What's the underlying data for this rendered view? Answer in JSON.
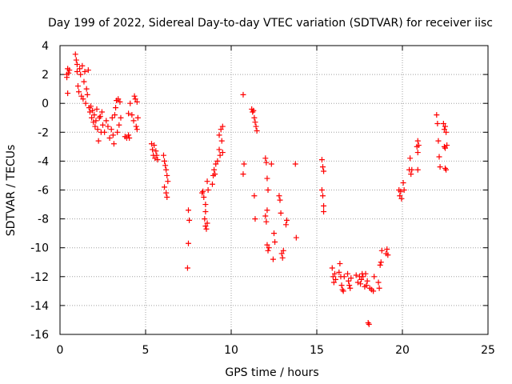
{
  "chart_data": {
    "type": "scatter",
    "title": "Day 199 of 2022, Sidereal Day-to-day VTEC variation (SDTVAR) for receiver iisc",
    "xlabel": "GPS time / hours",
    "ylabel": "SDTVAR / TECUs",
    "xlim": [
      0,
      25
    ],
    "ylim": [
      -16,
      4
    ],
    "xticks": [
      0,
      5,
      10,
      15,
      20,
      25
    ],
    "yticks": [
      -16,
      -14,
      -12,
      -10,
      -8,
      -6,
      -4,
      -2,
      0,
      2,
      4
    ],
    "grid": true,
    "marker": "plus",
    "color": "#ff0000",
    "series": [
      {
        "name": "SDTVAR",
        "points": [
          [
            0.4,
            2.0
          ],
          [
            0.4,
            1.8
          ],
          [
            0.45,
            2.4
          ],
          [
            0.5,
            2.1
          ],
          [
            0.45,
            0.7
          ],
          [
            0.55,
            2.3
          ],
          [
            0.9,
            3.4
          ],
          [
            0.95,
            3.0
          ],
          [
            1.0,
            2.7
          ],
          [
            1.0,
            2.2
          ],
          [
            1.05,
            1.2
          ],
          [
            1.1,
            0.8
          ],
          [
            1.15,
            2.4
          ],
          [
            1.2,
            2.0
          ],
          [
            1.25,
            0.5
          ],
          [
            1.3,
            2.6
          ],
          [
            1.35,
            0.3
          ],
          [
            1.4,
            1.5
          ],
          [
            1.45,
            2.2
          ],
          [
            1.5,
            0.0
          ],
          [
            1.55,
            1.0
          ],
          [
            1.6,
            0.6
          ],
          [
            1.65,
            2.3
          ],
          [
            1.7,
            -0.3
          ],
          [
            1.75,
            -0.6
          ],
          [
            1.8,
            -0.2
          ],
          [
            1.85,
            -1.0
          ],
          [
            1.9,
            -0.5
          ],
          [
            1.95,
            -1.3
          ],
          [
            2.0,
            -0.8
          ],
          [
            2.05,
            -1.6
          ],
          [
            2.1,
            -1.2
          ],
          [
            2.15,
            -0.4
          ],
          [
            2.2,
            -1.8
          ],
          [
            2.25,
            -2.6
          ],
          [
            2.3,
            -1.0
          ],
          [
            2.35,
            -0.9
          ],
          [
            2.4,
            -2.0
          ],
          [
            2.45,
            -0.6
          ],
          [
            2.5,
            -1.5
          ],
          [
            2.6,
            -2.0
          ],
          [
            2.7,
            -1.2
          ],
          [
            2.8,
            -1.6
          ],
          [
            2.9,
            -2.4
          ],
          [
            3.0,
            -1.8
          ],
          [
            3.05,
            -1.0
          ],
          [
            3.1,
            -2.2
          ],
          [
            3.15,
            -2.8
          ],
          [
            3.2,
            -0.8
          ],
          [
            3.25,
            -0.3
          ],
          [
            3.3,
            0.2
          ],
          [
            3.35,
            -2.0
          ],
          [
            3.4,
            0.3
          ],
          [
            3.45,
            -1.5
          ],
          [
            3.5,
            0.1
          ],
          [
            3.55,
            -1.0
          ],
          [
            3.8,
            -2.3
          ],
          [
            3.9,
            -2.4
          ],
          [
            4.0,
            -2.2
          ],
          [
            4.0,
            -0.7
          ],
          [
            4.05,
            -2.4
          ],
          [
            4.1,
            0.0
          ],
          [
            4.2,
            -0.8
          ],
          [
            4.3,
            -1.2
          ],
          [
            4.35,
            0.5
          ],
          [
            4.4,
            0.3
          ],
          [
            4.45,
            -1.6
          ],
          [
            4.5,
            0.1
          ],
          [
            4.5,
            -1.8
          ],
          [
            4.55,
            -1.0
          ],
          [
            5.35,
            -2.8
          ],
          [
            5.4,
            -3.2
          ],
          [
            5.45,
            -3.6
          ],
          [
            5.5,
            -2.9
          ],
          [
            5.55,
            -3.8
          ],
          [
            5.6,
            -3.3
          ],
          [
            5.65,
            -3.6
          ],
          [
            5.7,
            -3.9
          ],
          [
            6.05,
            -3.6
          ],
          [
            6.1,
            -4.0
          ],
          [
            6.15,
            -4.3
          ],
          [
            6.2,
            -4.6
          ],
          [
            6.25,
            -5.0
          ],
          [
            6.3,
            -5.4
          ],
          [
            6.1,
            -5.8
          ],
          [
            6.2,
            -6.2
          ],
          [
            6.25,
            -6.5
          ],
          [
            7.5,
            -7.4
          ],
          [
            7.55,
            -8.1
          ],
          [
            7.5,
            -9.7
          ],
          [
            7.45,
            -11.4
          ],
          [
            8.3,
            -6.2
          ],
          [
            8.35,
            -6.1
          ],
          [
            8.4,
            -6.5
          ],
          [
            8.5,
            -7.0
          ],
          [
            8.5,
            -7.5
          ],
          [
            8.45,
            -8.0
          ],
          [
            8.5,
            -8.5
          ],
          [
            8.55,
            -8.7
          ],
          [
            8.6,
            -8.3
          ],
          [
            8.6,
            -5.4
          ],
          [
            8.65,
            -6.0
          ],
          [
            8.9,
            -5.6
          ],
          [
            8.95,
            -5.0
          ],
          [
            9.0,
            -4.6
          ],
          [
            9.05,
            -4.9
          ],
          [
            9.1,
            -4.2
          ],
          [
            9.2,
            -4.0
          ],
          [
            9.3,
            -3.2
          ],
          [
            9.3,
            -2.2
          ],
          [
            9.35,
            -3.6
          ],
          [
            9.4,
            -1.8
          ],
          [
            9.45,
            -2.6
          ],
          [
            9.5,
            -3.4
          ],
          [
            9.5,
            -1.6
          ],
          [
            10.7,
            0.6
          ],
          [
            10.75,
            -4.2
          ],
          [
            10.7,
            -4.9
          ],
          [
            11.2,
            -0.4
          ],
          [
            11.25,
            -0.6
          ],
          [
            11.3,
            -0.5
          ],
          [
            11.35,
            -1.0
          ],
          [
            11.4,
            -1.3
          ],
          [
            11.45,
            -1.6
          ],
          [
            11.5,
            -1.9
          ],
          [
            11.35,
            -6.4
          ],
          [
            11.4,
            -8.0
          ],
          [
            12.0,
            -3.8
          ],
          [
            12.05,
            -4.1
          ],
          [
            12.1,
            -5.2
          ],
          [
            12.15,
            -6.0
          ],
          [
            12.1,
            -7.4
          ],
          [
            12.0,
            -7.8
          ],
          [
            12.05,
            -8.2
          ],
          [
            12.1,
            -9.8
          ],
          [
            12.15,
            -10.2
          ],
          [
            12.2,
            -10.0
          ],
          [
            12.35,
            -4.2
          ],
          [
            12.5,
            -9.0
          ],
          [
            12.55,
            -9.6
          ],
          [
            12.45,
            -10.8
          ],
          [
            12.8,
            -6.4
          ],
          [
            12.85,
            -6.7
          ],
          [
            12.9,
            -7.6
          ],
          [
            12.95,
            -10.4
          ],
          [
            13.0,
            -10.7
          ],
          [
            13.05,
            -10.2
          ],
          [
            13.2,
            -8.4
          ],
          [
            13.25,
            -8.1
          ],
          [
            13.75,
            -4.2
          ],
          [
            13.8,
            -9.3
          ],
          [
            15.3,
            -3.9
          ],
          [
            15.35,
            -4.4
          ],
          [
            15.4,
            -4.7
          ],
          [
            15.3,
            -6.0
          ],
          [
            15.35,
            -6.4
          ],
          [
            15.4,
            -7.1
          ],
          [
            15.4,
            -7.5
          ],
          [
            15.9,
            -11.4
          ],
          [
            15.95,
            -12.0
          ],
          [
            16.0,
            -12.4
          ],
          [
            16.05,
            -11.8
          ],
          [
            16.1,
            -12.2
          ],
          [
            16.3,
            -11.7
          ],
          [
            16.35,
            -11.1
          ],
          [
            16.4,
            -12.0
          ],
          [
            16.45,
            -12.6
          ],
          [
            16.5,
            -12.9
          ],
          [
            16.55,
            -13.0
          ],
          [
            16.6,
            -12.0
          ],
          [
            16.8,
            -11.8
          ],
          [
            16.85,
            -12.3
          ],
          [
            16.9,
            -12.6
          ],
          [
            16.95,
            -12.8
          ],
          [
            17.0,
            -12.1
          ],
          [
            17.3,
            -11.9
          ],
          [
            17.4,
            -12.4
          ],
          [
            17.5,
            -12.0
          ],
          [
            17.55,
            -12.5
          ],
          [
            17.6,
            -12.2
          ],
          [
            17.65,
            -11.8
          ],
          [
            17.7,
            -12.0
          ],
          [
            17.8,
            -12.7
          ],
          [
            17.85,
            -11.8
          ],
          [
            17.9,
            -12.6
          ],
          [
            17.95,
            -12.3
          ],
          [
            18.0,
            -15.2
          ],
          [
            18.05,
            -15.3
          ],
          [
            18.1,
            -12.8
          ],
          [
            18.2,
            -12.9
          ],
          [
            18.3,
            -13.0
          ],
          [
            18.35,
            -12.0
          ],
          [
            18.6,
            -12.4
          ],
          [
            18.65,
            -12.8
          ],
          [
            18.7,
            -11.2
          ],
          [
            18.75,
            -11.0
          ],
          [
            18.8,
            -10.2
          ],
          [
            19.05,
            -10.4
          ],
          [
            19.1,
            -10.1
          ],
          [
            19.15,
            -10.5
          ],
          [
            19.8,
            -6.0
          ],
          [
            19.85,
            -6.4
          ],
          [
            19.9,
            -6.1
          ],
          [
            19.95,
            -6.6
          ],
          [
            20.05,
            -5.5
          ],
          [
            20.1,
            -6.0
          ],
          [
            20.4,
            -4.6
          ],
          [
            20.45,
            -3.8
          ],
          [
            20.5,
            -4.9
          ],
          [
            20.55,
            -4.6
          ],
          [
            20.85,
            -3.0
          ],
          [
            20.9,
            -2.6
          ],
          [
            20.95,
            -2.9
          ],
          [
            20.9,
            -3.4
          ],
          [
            20.9,
            -4.6
          ],
          [
            22.0,
            -0.8
          ],
          [
            22.05,
            -1.4
          ],
          [
            22.1,
            -2.6
          ],
          [
            22.15,
            -3.7
          ],
          [
            22.2,
            -4.4
          ],
          [
            22.4,
            -1.4
          ],
          [
            22.45,
            -1.8
          ],
          [
            22.5,
            -1.6
          ],
          [
            22.55,
            -2.0
          ],
          [
            22.45,
            -3.0
          ],
          [
            22.5,
            -3.1
          ],
          [
            22.5,
            -4.5
          ],
          [
            22.55,
            -4.6
          ],
          [
            22.6,
            -2.9
          ]
        ]
      }
    ]
  }
}
